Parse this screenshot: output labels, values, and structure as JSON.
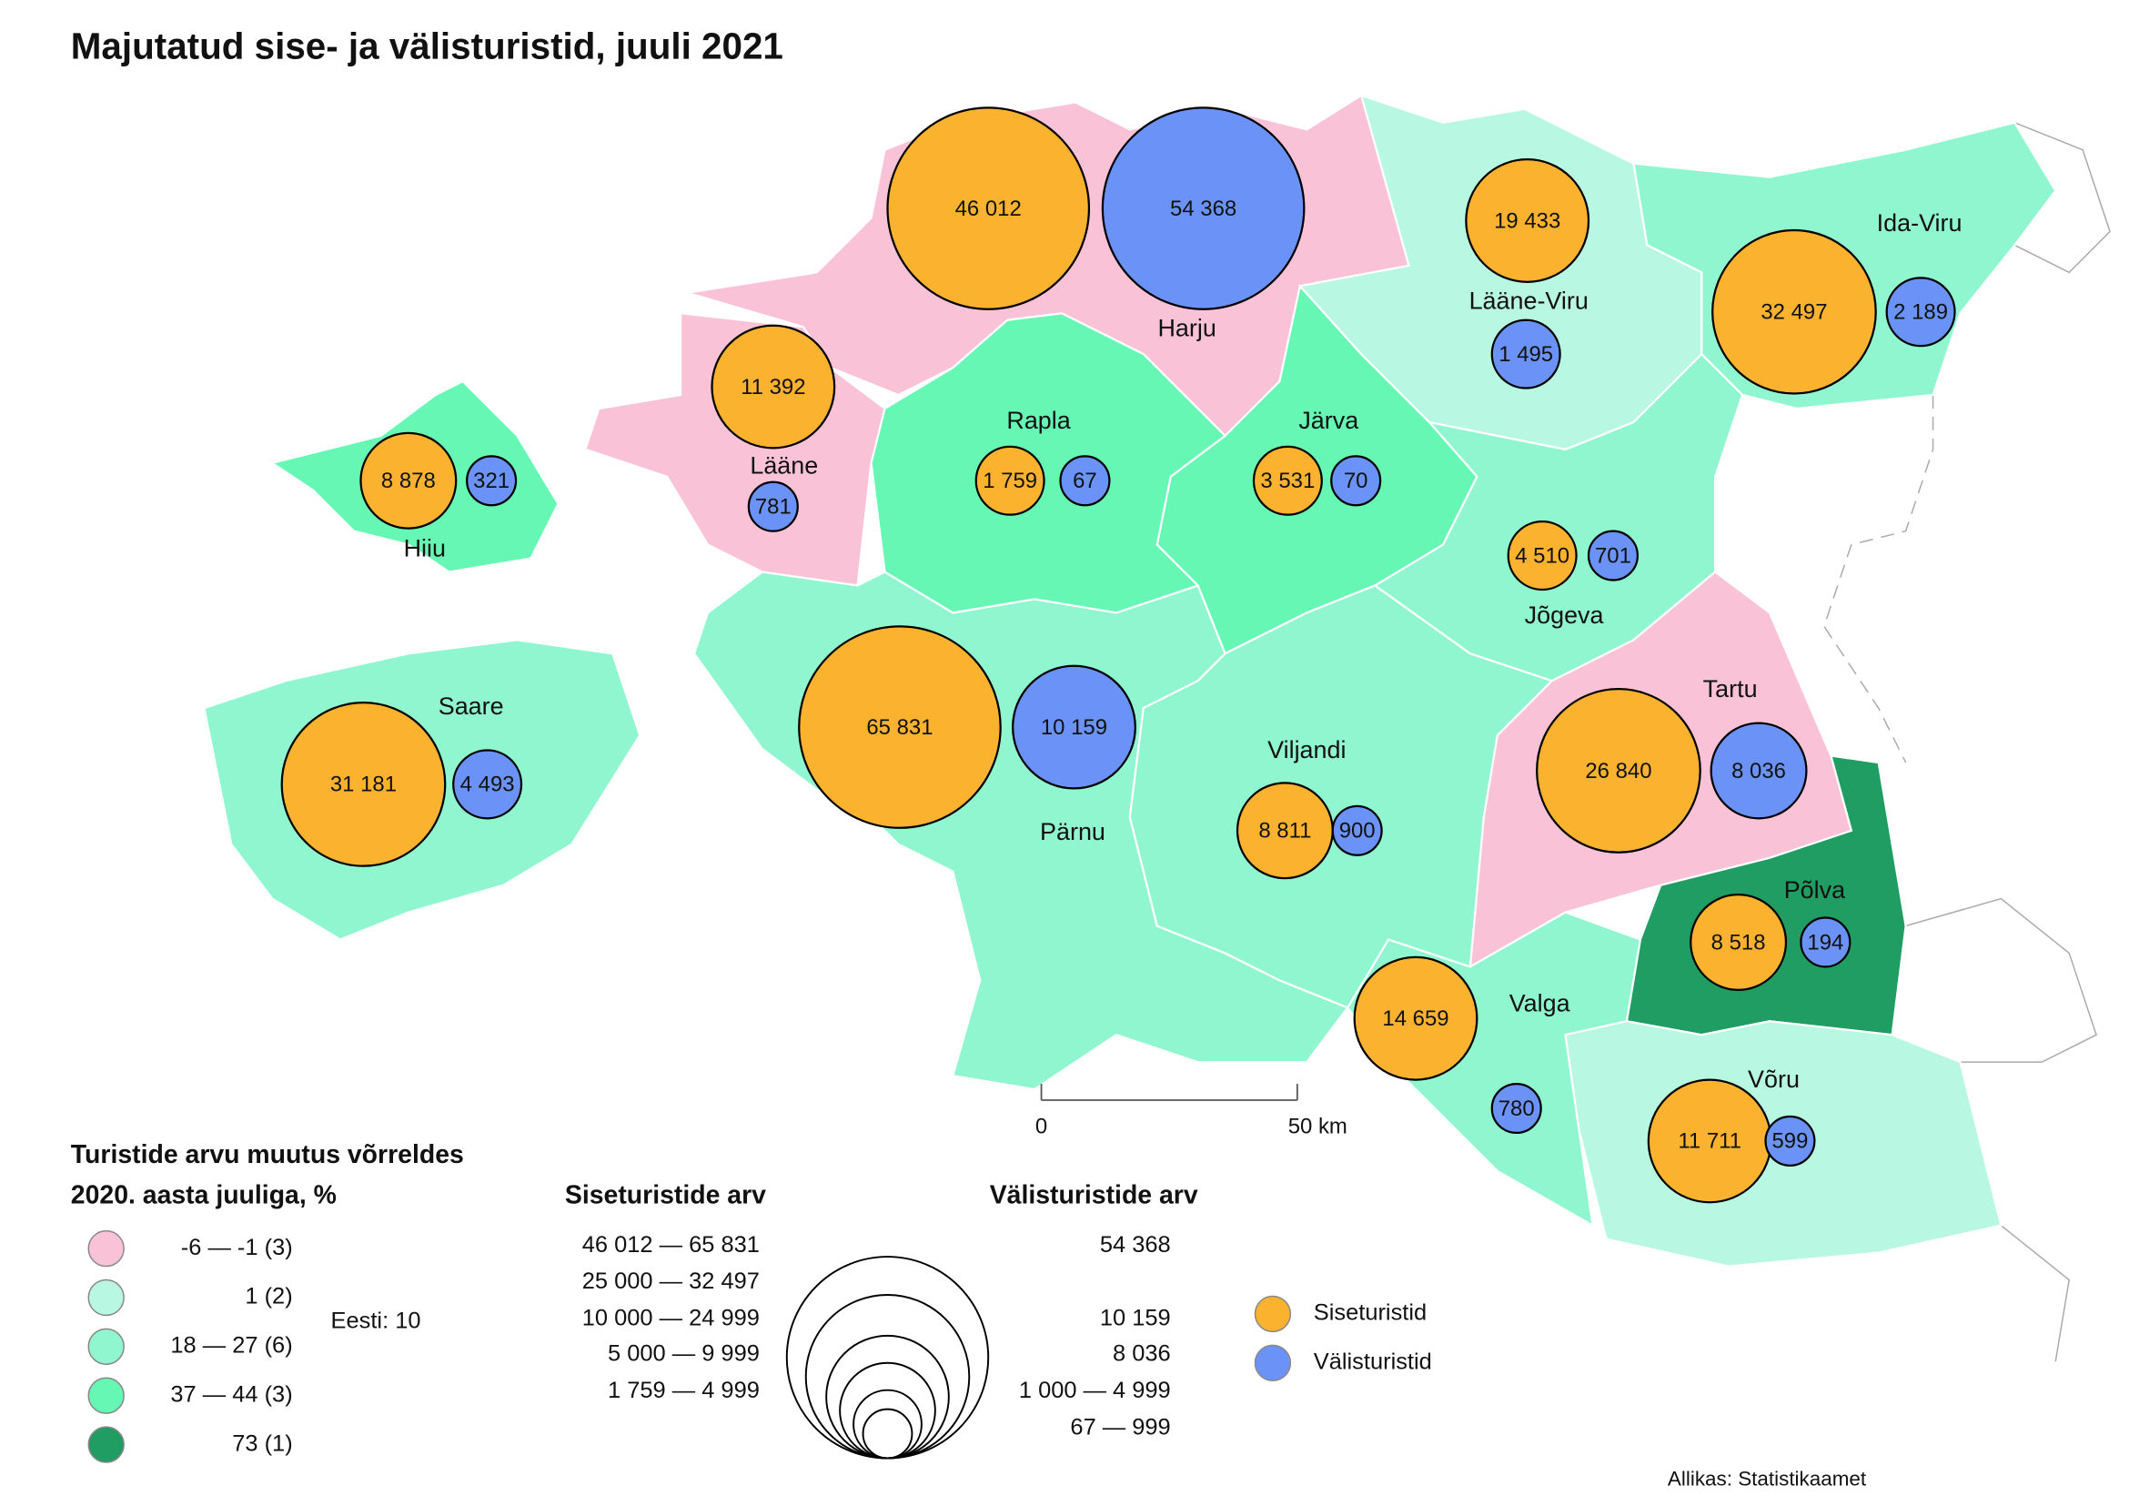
{
  "title": "Majutatud sise- ja välisturistid, juuli 2021",
  "counties": [
    {
      "name": "Harju",
      "color": "#f9c2d6",
      "domestic": {
        "value": 46012,
        "label": "46 012"
      },
      "foreign": {
        "value": 54368,
        "label": "54 368"
      }
    },
    {
      "name": "Hiiu",
      "color": "#66f7b5",
      "domestic": {
        "value": 8878,
        "label": "8 878"
      },
      "foreign": {
        "value": 321,
        "label": "321"
      }
    },
    {
      "name": "Ida-Viru",
      "color": "#8ff6d0",
      "domestic": {
        "value": 32497,
        "label": "32 497"
      },
      "foreign": {
        "value": 2189,
        "label": "2 189"
      }
    },
    {
      "name": "Jõgeva",
      "color": "#8ff6d0",
      "domestic": {
        "value": 4510,
        "label": "4 510"
      },
      "foreign": {
        "value": 701,
        "label": "701"
      }
    },
    {
      "name": "Järva",
      "color": "#66f7b5",
      "domestic": {
        "value": 3531,
        "label": "3 531"
      },
      "foreign": {
        "value": 70,
        "label": "70"
      }
    },
    {
      "name": "Lääne",
      "color": "#f9c2d6",
      "domestic": {
        "value": 11392,
        "label": "11 392"
      },
      "foreign": {
        "value": 781,
        "label": "781"
      }
    },
    {
      "name": "Lääne-Viru",
      "color": "#b8f7e1",
      "domestic": {
        "value": 19433,
        "label": "19 433"
      },
      "foreign": {
        "value": 1495,
        "label": "1 495"
      }
    },
    {
      "name": "Põlva",
      "color": "#1f9d63",
      "domestic": {
        "value": 8518,
        "label": "8 518"
      },
      "foreign": {
        "value": 194,
        "label": "194"
      }
    },
    {
      "name": "Pärnu",
      "color": "#8ff6d0",
      "domestic": {
        "value": 65831,
        "label": "65 831"
      },
      "foreign": {
        "value": 10159,
        "label": "10 159"
      }
    },
    {
      "name": "Rapla",
      "color": "#66f7b5",
      "domestic": {
        "value": 1759,
        "label": "1 759"
      },
      "foreign": {
        "value": 67,
        "label": "67"
      }
    },
    {
      "name": "Saare",
      "color": "#8ff6d0",
      "domestic": {
        "value": 31181,
        "label": "31 181"
      },
      "foreign": {
        "value": 4493,
        "label": "4 493"
      }
    },
    {
      "name": "Tartu",
      "color": "#f9c2d6",
      "domestic": {
        "value": 26840,
        "label": "26 840"
      },
      "foreign": {
        "value": 8036,
        "label": "8 036"
      }
    },
    {
      "name": "Valga",
      "color": "#8ff6d0",
      "domestic": {
        "value": 14659,
        "label": "14 659"
      },
      "foreign": {
        "value": 780,
        "label": "780"
      }
    },
    {
      "name": "Viljandi",
      "color": "#8ff6d0",
      "domestic": {
        "value": 8811,
        "label": "8 811"
      },
      "foreign": {
        "value": 900,
        "label": "900"
      }
    },
    {
      "name": "Võru",
      "color": "#b8f7e1",
      "domestic": {
        "value": 11711,
        "label": "11 711"
      },
      "foreign": {
        "value": 599,
        "label": "599"
      }
    }
  ],
  "change_legend": {
    "title": [
      "Turistide arvu muutus võrreldes",
      "2020. aasta juuliga, %"
    ],
    "classes": [
      {
        "label": "-6 —  -1 (3)",
        "color": "#f9c2d6"
      },
      {
        "label": "1 (2)",
        "color": "#b8f7e1"
      },
      {
        "label": "18 —  27 (6)",
        "color": "#8ff6d0"
      },
      {
        "label": "37 —  44 (3)",
        "color": "#66f7b5"
      },
      {
        "label": "73 (1)",
        "color": "#1f9d63"
      }
    ],
    "note": "Eesti: 10"
  },
  "domestic_legend": {
    "title": "Siseturistide arv",
    "classes": [
      {
        "min": 46012,
        "max": 65831,
        "label": "46 012 — 65 831"
      },
      {
        "min": 25000,
        "max": 32497,
        "label": "25 000 — 32 497"
      },
      {
        "min": 10000,
        "max": 24999,
        "label": "10 000 — 24 999"
      },
      {
        "min": 5000,
        "max": 9999,
        "label": "5 000 —   9 999"
      },
      {
        "min": 1759,
        "max": 4999,
        "label": "1 759 —   4 999"
      }
    ]
  },
  "foreign_legend": {
    "title": "Välisturistide arv",
    "classes": [
      {
        "min": 54368,
        "max": 54368,
        "label": "54 368"
      },
      {
        "min": 10159,
        "max": 10159,
        "label": "10 159"
      },
      {
        "min": 8036,
        "max": 8036,
        "label": "8 036"
      },
      {
        "min": 1000,
        "max": 4999,
        "label": "1 000 —   4 999"
      },
      {
        "min": 67,
        "max": 999,
        "label": "67 —      999"
      }
    ]
  },
  "symbols": [
    {
      "label": "Siseturistid",
      "color": "#fbb22f"
    },
    {
      "label": "Välisturistid",
      "color": "#6b93f7"
    }
  ],
  "scale_bar": [
    "0",
    "50 km"
  ],
  "source": "Allikas: Statistikaamet"
}
